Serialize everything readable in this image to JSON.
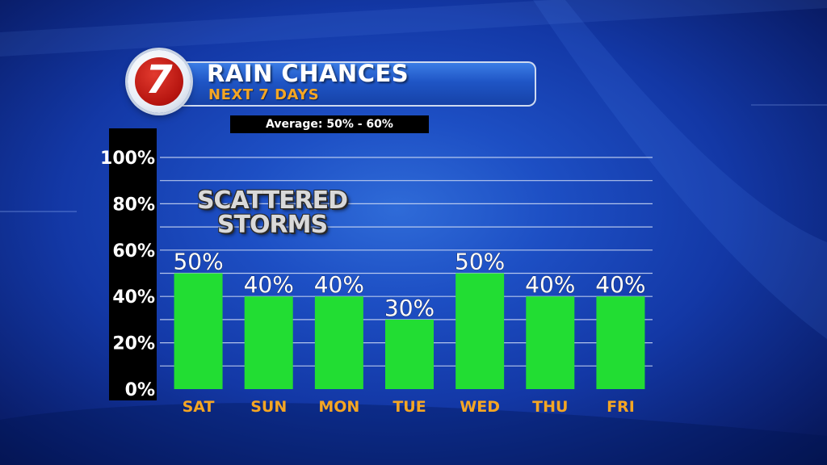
{
  "header": {
    "logo_text": "7",
    "title": "RAIN CHANCES",
    "subtitle": "NEXT 7 DAYS",
    "average_label": "Average: 50% - 60%"
  },
  "annotation": {
    "line1": "SCATTERED",
    "line2": "STORMS"
  },
  "colors": {
    "bar": "#22dd33",
    "day_label": "#f5a623",
    "grid": "#d0dcf5"
  },
  "chart_data": {
    "type": "bar",
    "title": "RAIN CHANCES",
    "subtitle": "NEXT 7 DAYS",
    "categories": [
      "SAT",
      "SUN",
      "MON",
      "TUE",
      "WED",
      "THU",
      "FRI"
    ],
    "values": [
      50,
      40,
      40,
      30,
      50,
      40,
      40
    ],
    "value_labels": [
      "50%",
      "40%",
      "40%",
      "30%",
      "50%",
      "40%",
      "40%"
    ],
    "ylim": [
      0,
      100
    ],
    "yticks": [
      0,
      20,
      40,
      60,
      80,
      100
    ],
    "ytick_labels": [
      "0%",
      "20%",
      "40%",
      "60%",
      "80%",
      "100%"
    ],
    "grid": true,
    "legend": "none"
  }
}
